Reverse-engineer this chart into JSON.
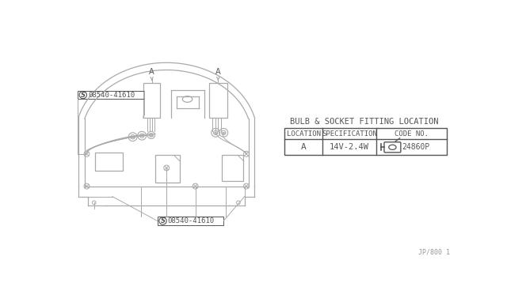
{
  "bg_color": "#ffffff",
  "line_color": "#aaaaaa",
  "dark_color": "#555555",
  "title_table": "BULB & SOCKET FITTING LOCATION",
  "table_headers": [
    "LOCATION",
    "SPECIFICATION",
    "CODE NO."
  ],
  "table_row": [
    "A",
    "14V-2.4W",
    "24860P"
  ],
  "label_a": "A",
  "footer": "JP/800 1",
  "s_label": "08540-41610"
}
